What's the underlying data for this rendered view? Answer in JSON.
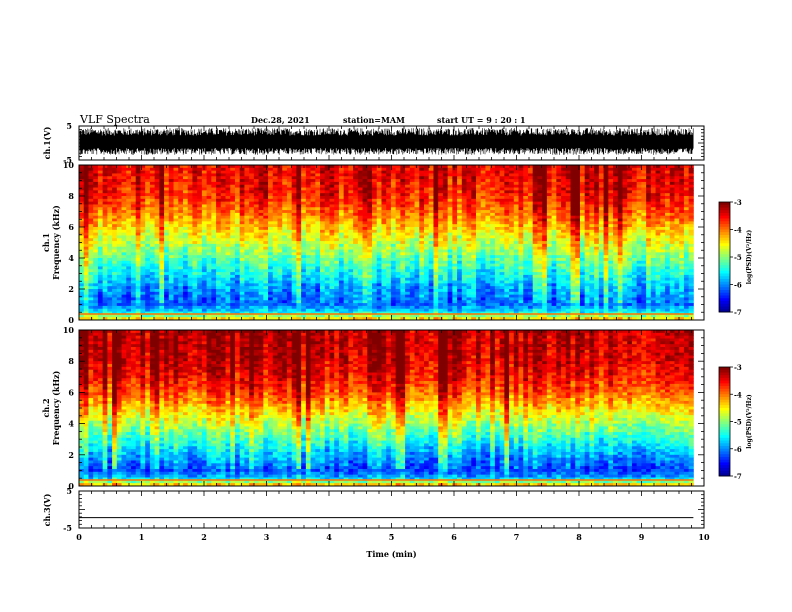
{
  "header": {
    "title": "VLF Spectra",
    "date": "Dec.28, 2021",
    "station": "station=MAM",
    "start": "start  UT  =   9 : 20 : 1"
  },
  "chart_data": [
    {
      "panel": "ch.1 waveform",
      "type": "line",
      "ylabel": "ch.1(V)",
      "ylim": [
        -5,
        5
      ],
      "yticks": [
        "5",
        "-5"
      ],
      "xlim": [
        0,
        10
      ],
      "xticks": [
        "0",
        "1",
        "2",
        "3",
        "4",
        "5",
        "6",
        "7",
        "8",
        "9",
        "10"
      ],
      "data_end_min": 9.83,
      "description_of_signal": "dense noise burst spanning approx -3 to 4 V"
    },
    {
      "panel": "ch.1 spectrogram",
      "type": "heatmap",
      "ylabel_top": "ch.1",
      "ylabel": "Frequency (kHz)",
      "ylim": [
        0,
        10
      ],
      "yticks": [
        "0",
        "2",
        "4",
        "6",
        "8",
        "10"
      ],
      "xlim": [
        0,
        10
      ],
      "colorbar": {
        "label": "log(PSD)(V²/Hz)",
        "ticks": [
          "-3",
          "-4",
          "-5",
          "-6",
          "-7"
        ],
        "range": [
          -7,
          -3
        ]
      },
      "profile_freq_khz": [
        0,
        0.5,
        1,
        2,
        3,
        4,
        5,
        6,
        7,
        8,
        9,
        10
      ],
      "profile_log_psd": [
        -4.2,
        -5.6,
        -6.1,
        -5.9,
        -5.5,
        -5.1,
        -4.7,
        -4.3,
        -3.9,
        -3.6,
        -3.5,
        -3.45
      ]
    },
    {
      "panel": "ch.2 spectrogram",
      "type": "heatmap",
      "ylabel_top": "ch.2",
      "ylabel": "Frequency (kHz)",
      "ylim": [
        0,
        10
      ],
      "yticks": [
        "0",
        "2",
        "4",
        "6",
        "8",
        "10"
      ],
      "xlim": [
        0,
        10
      ],
      "colorbar": {
        "label": "log(PSD)(V²/Hz)",
        "ticks": [
          "-3",
          "-4",
          "-5",
          "-6",
          "-7"
        ],
        "range": [
          -7,
          -3
        ]
      },
      "profile_freq_khz": [
        0,
        0.5,
        1,
        2,
        3,
        4,
        5,
        6,
        7,
        8,
        9,
        10
      ],
      "profile_log_psd": [
        -4.0,
        -5.8,
        -6.2,
        -5.8,
        -5.3,
        -4.8,
        -4.3,
        -3.8,
        -3.5,
        -3.3,
        -3.25,
        -3.2
      ]
    },
    {
      "panel": "ch.3 waveform",
      "type": "line",
      "ylabel": "ch.3(V)",
      "ylim": [
        -5,
        5
      ],
      "yticks": [
        "5",
        "0",
        "-5"
      ],
      "xlim": [
        0,
        10
      ],
      "xticks": [
        "0",
        "1",
        "2",
        "3",
        "4",
        "5",
        "6",
        "7",
        "8",
        "9",
        "10"
      ],
      "xlabel": "Time (min)",
      "constant_value": -2.2,
      "data_end_min": 9.83
    }
  ]
}
